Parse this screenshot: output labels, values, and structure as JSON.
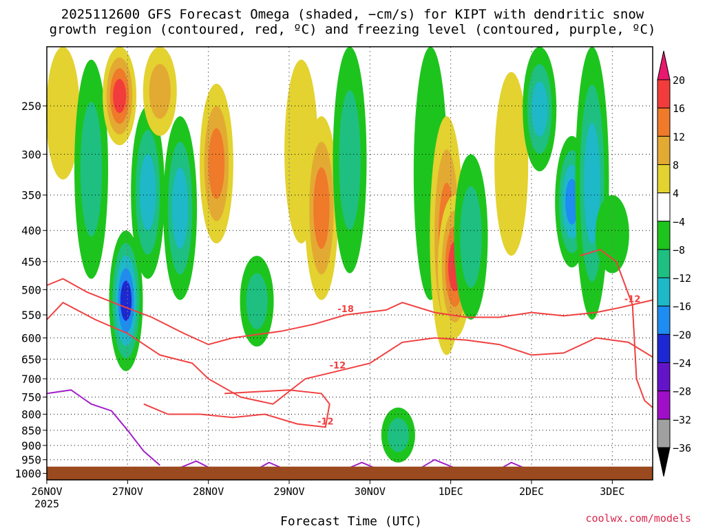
{
  "title_line1": "2025112600 GFS Forecast Omega (shaded, −cm/s) for KIPT with dendritic snow",
  "title_line2": "growth region (contoured, red, ºC) and freezing level (contoured, purple, ºC)",
  "credit": "coolwx.com/models",
  "chart_data": {
    "type": "heatmap",
    "xlabel": "Forecast Time (UTC)",
    "ylabel": "",
    "x_ticks": [
      "26NOV",
      "27NOV",
      "28NOV",
      "29NOV",
      "30NOV",
      "1DEC",
      "2DEC",
      "3DEC"
    ],
    "x_sublabel": "2025",
    "x_range_days": [
      0,
      7.5
    ],
    "y_ticks": [
      250,
      300,
      350,
      400,
      450,
      500,
      550,
      600,
      650,
      700,
      750,
      800,
      850,
      900,
      950,
      1000
    ],
    "y_range_hpa": [
      200,
      1025
    ],
    "y_scale": "log-pressure",
    "grid": true,
    "colorbar": {
      "labels": [
        "20",
        "16",
        "12",
        "8",
        "4",
        "−4",
        "−8",
        "−12",
        "−16",
        "−20",
        "−24",
        "−28",
        "−32",
        "−36"
      ],
      "colors": [
        "#e8186e",
        "#f23c3c",
        "#ef7a2a",
        "#e3aa33",
        "#e3d230",
        "#ffffff",
        "#1ec41e",
        "#1ebf80",
        "#1eb8c8",
        "#1e8cf0",
        "#1e28d2",
        "#6414c8",
        "#a00fc8",
        "#a0a0a0",
        "#000000"
      ]
    },
    "ground_color": "#9b4a1f",
    "shaded_omega": [
      {
        "day": 0.2,
        "p_top": 200,
        "p_bot": 330,
        "value": 6
      },
      {
        "day": 0.55,
        "p_top": 210,
        "p_bot": 480,
        "value": -8
      },
      {
        "day": 0.9,
        "p_top": 200,
        "p_bot": 290,
        "value": 18
      },
      {
        "day": 0.98,
        "p_top": 400,
        "p_bot": 680,
        "value": -20
      },
      {
        "day": 1.25,
        "p_top": 250,
        "p_bot": 480,
        "value": -12
      },
      {
        "day": 1.4,
        "p_top": 200,
        "p_bot": 280,
        "value": 8
      },
      {
        "day": 1.65,
        "p_top": 260,
        "p_bot": 520,
        "value": -14
      },
      {
        "day": 2.1,
        "p_top": 230,
        "p_bot": 420,
        "value": 12
      },
      {
        "day": 2.6,
        "p_top": 440,
        "p_bot": 620,
        "value": -10
      },
      {
        "day": 3.15,
        "p_top": 210,
        "p_bot": 420,
        "value": 4
      },
      {
        "day": 3.4,
        "p_top": 260,
        "p_bot": 520,
        "value": 14
      },
      {
        "day": 3.75,
        "p_top": 200,
        "p_bot": 470,
        "value": -8
      },
      {
        "day": 4.35,
        "p_top": 780,
        "p_bot": 960,
        "value": -10
      },
      {
        "day": 4.75,
        "p_top": 200,
        "p_bot": 520,
        "value": -6
      },
      {
        "day": 4.95,
        "p_top": 260,
        "p_bot": 640,
        "value": 12
      },
      {
        "day": 5.05,
        "p_top": 350,
        "p_bot": 600,
        "value": 18
      },
      {
        "day": 5.25,
        "p_top": 300,
        "p_bot": 560,
        "value": -8
      },
      {
        "day": 5.75,
        "p_top": 220,
        "p_bot": 440,
        "value": 4
      },
      {
        "day": 6.1,
        "p_top": 200,
        "p_bot": 320,
        "value": -14
      },
      {
        "day": 6.5,
        "p_top": 280,
        "p_bot": 460,
        "value": -18
      },
      {
        "day": 6.75,
        "p_top": 200,
        "p_bot": 560,
        "value": -12
      },
      {
        "day": 7.0,
        "p_top": 350,
        "p_bot": 470,
        "value": -6
      }
    ],
    "contours": [
      {
        "label": "-18",
        "color": "#f04040",
        "points": [
          [
            0,
            492
          ],
          [
            0.2,
            480
          ],
          [
            0.5,
            505
          ],
          [
            0.9,
            530
          ],
          [
            1.3,
            555
          ],
          [
            1.7,
            590
          ],
          [
            2.0,
            615
          ],
          [
            2.3,
            600
          ],
          [
            2.9,
            585
          ],
          [
            3.3,
            570
          ],
          [
            3.7,
            550
          ],
          [
            4.2,
            540
          ],
          [
            4.4,
            525
          ],
          [
            4.8,
            545
          ],
          [
            5.2,
            555
          ],
          [
            5.6,
            555
          ],
          [
            6.0,
            545
          ],
          [
            6.4,
            552
          ],
          [
            6.8,
            545
          ],
          [
            7.1,
            535
          ],
          [
            7.5,
            520
          ]
        ]
      },
      {
        "label": "-12",
        "color": "#f04040",
        "points": [
          [
            0,
            560
          ],
          [
            0.2,
            525
          ],
          [
            0.6,
            560
          ],
          [
            1.0,
            590
          ],
          [
            1.4,
            640
          ],
          [
            1.8,
            660
          ],
          [
            2.0,
            700
          ],
          [
            2.4,
            750
          ],
          [
            2.8,
            770
          ],
          [
            3.2,
            700
          ],
          [
            3.6,
            680
          ],
          [
            4.0,
            660
          ],
          [
            4.4,
            610
          ],
          [
            4.8,
            600
          ],
          [
            5.2,
            605
          ],
          [
            5.6,
            615
          ],
          [
            6.0,
            640
          ],
          [
            6.4,
            635
          ],
          [
            6.8,
            600
          ],
          [
            7.2,
            610
          ],
          [
            7.5,
            645
          ]
        ]
      },
      {
        "label": "-12",
        "color": "#f04040",
        "points": [
          [
            1.2,
            770
          ],
          [
            1.5,
            800
          ],
          [
            1.9,
            800
          ],
          [
            2.3,
            810
          ],
          [
            2.7,
            800
          ],
          [
            3.1,
            830
          ],
          [
            3.45,
            840
          ],
          [
            3.5,
            770
          ],
          [
            3.4,
            740
          ],
          [
            3.0,
            730
          ],
          [
            2.6,
            735
          ],
          [
            2.2,
            740
          ]
        ]
      },
      {
        "label": "-12",
        "color": "#f04040",
        "points": [
          [
            6.6,
            440
          ],
          [
            6.85,
            430
          ],
          [
            7.05,
            450
          ],
          [
            7.25,
            530
          ],
          [
            7.3,
            700
          ],
          [
            7.4,
            760
          ],
          [
            7.5,
            780
          ]
        ]
      },
      {
        "label": "",
        "color": "#a020c8",
        "points": [
          [
            0,
            740
          ],
          [
            0.3,
            730
          ],
          [
            0.55,
            770
          ],
          [
            0.8,
            790
          ],
          [
            1.0,
            850
          ],
          [
            1.2,
            920
          ],
          [
            1.4,
            970
          ]
        ]
      },
      {
        "label": "",
        "color": "#a020c8",
        "points": [
          [
            1.6,
            985
          ],
          [
            1.85,
            955
          ],
          [
            2.05,
            985
          ]
        ]
      },
      {
        "label": "",
        "color": "#a020c8",
        "points": [
          [
            2.6,
            985
          ],
          [
            2.75,
            960
          ],
          [
            2.95,
            985
          ]
        ]
      },
      {
        "label": "",
        "color": "#a020c8",
        "points": [
          [
            3.7,
            985
          ],
          [
            3.9,
            960
          ],
          [
            4.1,
            985
          ]
        ]
      },
      {
        "label": "",
        "color": "#a020c8",
        "points": [
          [
            4.6,
            985
          ],
          [
            4.8,
            950
          ],
          [
            5.05,
            980
          ]
        ]
      },
      {
        "label": "",
        "color": "#a020c8",
        "points": [
          [
            5.6,
            985
          ],
          [
            5.75,
            960
          ],
          [
            5.95,
            985
          ]
        ]
      }
    ]
  }
}
